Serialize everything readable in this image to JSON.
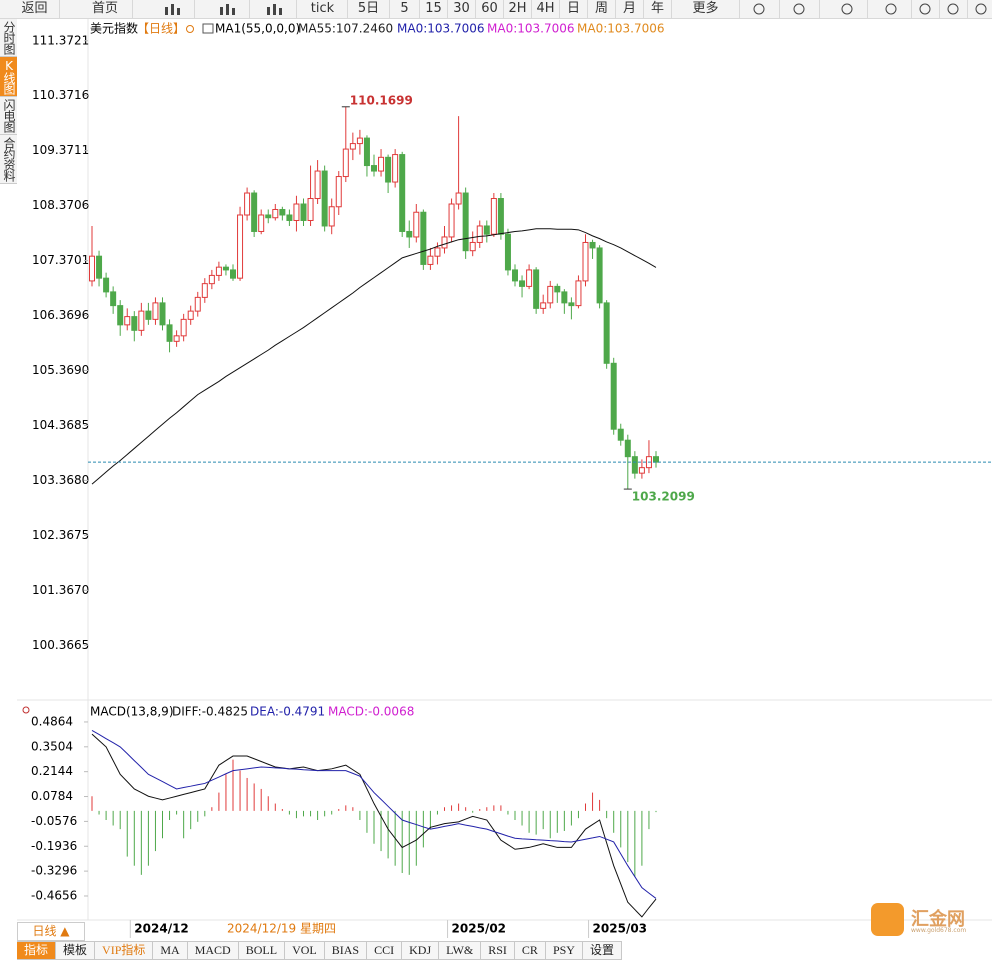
{
  "toolbar": {
    "back": "返回",
    "home": "首页",
    "buttons": [
      "tick",
      "5日",
      "5",
      "15",
      "30",
      "60",
      "2H",
      "4H",
      "日",
      "周",
      "月",
      "年",
      "更多"
    ]
  },
  "sidebar": [
    "分时图",
    "K线图",
    "闪电图",
    "合约资料"
  ],
  "chart_data": [
    {
      "type": "candlestick",
      "title": "美元指数",
      "period": "【日线】",
      "indicator": "MA1(55,0,0,0)",
      "legend": [
        {
          "text": "MA55:107.2460",
          "color": "#222222"
        },
        {
          "text": "MA0:103.7006",
          "color": "#2222aa"
        },
        {
          "text": "MA0:103.7006",
          "color": "#d020d0"
        },
        {
          "text": "MA0:103.7006",
          "color": "#e08a1e"
        }
      ],
      "cursor_label": "2024/12/19 星期四",
      "categories": [
        null,
        null,
        null,
        null,
        null,
        null,
        "2024/12",
        null,
        null,
        null,
        null,
        null,
        null,
        null,
        null,
        null,
        null,
        null,
        null,
        null,
        null,
        null,
        null,
        null,
        null,
        null,
        null,
        null,
        null,
        null,
        null,
        null,
        null,
        null,
        null,
        null,
        null,
        null,
        null,
        null,
        null,
        null,
        null,
        null,
        null,
        null,
        null,
        null,
        null,
        null,
        null,
        "2025/02",
        null,
        null,
        null,
        null,
        null,
        null,
        null,
        null,
        null,
        null,
        null,
        null,
        null,
        null,
        null,
        null,
        null,
        null,
        null,
        "2025/03",
        null,
        null,
        null,
        null,
        null,
        null,
        null,
        null,
        null
      ],
      "open": [
        107.0,
        107.45,
        107.05,
        106.8,
        106.55,
        106.2,
        106.35,
        106.1,
        106.45,
        106.3,
        106.6,
        106.2,
        105.9,
        106.0,
        106.3,
        106.45,
        106.7,
        106.95,
        107.1,
        107.25,
        107.2,
        107.05,
        108.2,
        108.6,
        107.9,
        108.2,
        108.15,
        108.3,
        108.2,
        108.1,
        108.4,
        108.1,
        108.5,
        109.0,
        108.0,
        108.35,
        108.9,
        109.4,
        109.5,
        109.6,
        109.1,
        109.0,
        109.25,
        108.8,
        109.3,
        107.9,
        107.8,
        108.25,
        107.3,
        107.45,
        107.6,
        107.8,
        108.4,
        108.6,
        107.55,
        107.7,
        108.0,
        107.85,
        108.5,
        107.85,
        107.2,
        107.0,
        106.9,
        107.2,
        106.5,
        106.6,
        106.9,
        106.8,
        106.6,
        106.55,
        107.0,
        107.7,
        107.6,
        106.6,
        105.5,
        104.3,
        104.1,
        103.8,
        103.5,
        103.6,
        103.8
      ],
      "high": [
        108.0,
        107.55,
        107.15,
        106.9,
        106.65,
        106.5,
        106.45,
        106.6,
        106.6,
        106.7,
        106.7,
        106.3,
        106.1,
        106.4,
        106.55,
        106.8,
        107.05,
        107.2,
        107.35,
        107.3,
        107.3,
        108.35,
        108.7,
        108.65,
        108.3,
        108.3,
        108.4,
        108.35,
        108.3,
        108.55,
        108.5,
        109.1,
        109.2,
        109.1,
        108.5,
        109.0,
        110.1699,
        109.7,
        109.75,
        109.65,
        109.3,
        109.4,
        109.3,
        109.4,
        109.35,
        108.1,
        108.4,
        108.3,
        107.6,
        107.7,
        108.0,
        108.5,
        110.0,
        108.7,
        107.9,
        108.1,
        108.1,
        108.6,
        108.6,
        107.95,
        107.3,
        107.1,
        107.3,
        107.25,
        106.75,
        107.0,
        106.95,
        106.85,
        106.7,
        107.1,
        107.85,
        107.75,
        107.65,
        106.65,
        105.6,
        104.4,
        104.2,
        103.9,
        103.75,
        104.1,
        103.9
      ],
      "low": [
        106.9,
        106.9,
        106.7,
        106.4,
        106.0,
        106.1,
        105.9,
        106.0,
        106.2,
        106.2,
        106.1,
        105.7,
        105.8,
        105.9,
        106.2,
        106.35,
        106.6,
        106.85,
        107.0,
        107.1,
        107.0,
        107.0,
        108.1,
        107.8,
        107.85,
        108.05,
        108.1,
        108.1,
        108.0,
        107.9,
        108.0,
        108.0,
        108.4,
        107.9,
        107.85,
        108.2,
        108.8,
        109.2,
        109.3,
        108.9,
        108.9,
        108.9,
        108.6,
        108.7,
        107.8,
        107.6,
        107.7,
        107.2,
        107.2,
        107.3,
        107.5,
        107.7,
        108.3,
        107.4,
        107.45,
        107.6,
        107.7,
        107.8,
        107.75,
        107.1,
        106.9,
        106.7,
        106.85,
        106.4,
        106.4,
        106.5,
        106.6,
        106.4,
        106.3,
        106.5,
        106.9,
        107.4,
        106.5,
        105.4,
        104.2,
        104.0,
        103.2099,
        103.4,
        103.4,
        103.5,
        103.6
      ],
      "close": [
        107.45,
        107.05,
        106.8,
        106.55,
        106.2,
        106.35,
        106.1,
        106.45,
        106.3,
        106.6,
        106.2,
        105.9,
        106.0,
        106.3,
        106.45,
        106.7,
        106.95,
        107.1,
        107.25,
        107.2,
        107.05,
        108.2,
        108.6,
        107.9,
        108.2,
        108.15,
        108.3,
        108.2,
        108.1,
        108.4,
        108.1,
        108.5,
        109.0,
        108.0,
        108.35,
        108.9,
        109.4,
        109.5,
        109.6,
        109.1,
        109.0,
        109.25,
        108.8,
        109.3,
        107.9,
        107.8,
        108.25,
        107.3,
        107.45,
        107.6,
        107.8,
        108.4,
        108.6,
        107.55,
        107.7,
        108.0,
        107.85,
        108.5,
        107.85,
        107.2,
        107.0,
        106.9,
        107.2,
        106.5,
        106.6,
        106.9,
        106.8,
        106.6,
        106.55,
        107.0,
        107.7,
        107.6,
        106.6,
        105.5,
        104.3,
        104.1,
        103.8,
        103.5,
        103.6,
        103.8,
        103.7006
      ],
      "ma": {
        "color": "#111111",
        "values": [
          103.3,
          103.41,
          103.52,
          103.63,
          103.73,
          103.84,
          103.95,
          104.06,
          104.17,
          104.28,
          104.39,
          104.5,
          104.6,
          104.71,
          104.82,
          104.93,
          105.01,
          105.09,
          105.17,
          105.26,
          105.34,
          105.42,
          105.5,
          105.58,
          105.66,
          105.74,
          105.83,
          105.91,
          105.99,
          106.07,
          106.15,
          106.24,
          106.33,
          106.42,
          106.51,
          106.6,
          106.69,
          106.78,
          106.88,
          106.97,
          107.06,
          107.15,
          107.24,
          107.33,
          107.42,
          107.46,
          107.5,
          107.54,
          107.58,
          107.63,
          107.67,
          107.71,
          107.75,
          107.77,
          107.79,
          107.81,
          107.82,
          107.84,
          107.86,
          107.88,
          107.9,
          107.91,
          107.93,
          107.95,
          107.95,
          107.95,
          107.94,
          107.94,
          107.94,
          107.93,
          107.88,
          107.82,
          107.77,
          107.71,
          107.66,
          107.6,
          107.53,
          107.46,
          107.39,
          107.32,
          107.246
        ]
      },
      "up_color": "#e03a3a",
      "down_color": "#4ea84a",
      "last_line_color": "#2a8bb0",
      "ylim": [
        99.37,
        111.75
      ],
      "yticks": [
        111.3721,
        110.3716,
        109.3711,
        108.3706,
        107.3701,
        106.3696,
        {
          "value": 105.369,
          "label": "105.3690"
        },
        104.3685,
        {
          "value": 103.368,
          "label": "103.3680"
        },
        102.3675,
        {
          "value": 101.367,
          "label": "101.3670"
        },
        100.3665
      ]
    },
    {
      "type": "macd",
      "title": "MACD(13,8,9)",
      "series": [
        {
          "name": "DIFF:-0.4825",
          "color": "#111111",
          "values": [
            0.42,
            0.385,
            0.35,
            0.275,
            0.2,
            0.16,
            0.12,
            0.1,
            0.08,
            0.07,
            0.06,
            0.07,
            0.08,
            0.09,
            0.1,
            0.11,
            0.12,
            0.185,
            0.25,
            0.275,
            0.3,
            0.3,
            0.3,
            0.285,
            0.27,
            0.255,
            0.24,
            0.235,
            0.23,
            0.235,
            0.24,
            0.23,
            0.22,
            0.225,
            0.23,
            0.24,
            0.25,
            0.225,
            0.2,
            0.12,
            0.04,
            -0.03,
            -0.1,
            -0.15,
            -0.2,
            -0.18,
            -0.16,
            -0.125,
            -0.09,
            -0.08,
            -0.07,
            -0.065,
            -0.06,
            -0.045,
            -0.03,
            -0.04,
            -0.05,
            -0.105,
            -0.16,
            -0.185,
            -0.21,
            -0.205,
            -0.2,
            -0.19,
            -0.18,
            -0.19,
            -0.2,
            -0.2,
            -0.2,
            -0.15,
            -0.1,
            -0.075,
            -0.05,
            -0.175,
            -0.3,
            -0.4,
            -0.5,
            -0.54,
            -0.58,
            -0.53,
            -0.4825
          ]
        },
        {
          "name": "DEA:-0.4791",
          "color": "#2222aa",
          "values": [
            0.44,
            0.418,
            0.395,
            0.373,
            0.35,
            0.313,
            0.275,
            0.238,
            0.2,
            0.18,
            0.16,
            0.14,
            0.12,
            0.128,
            0.135,
            0.143,
            0.15,
            0.168,
            0.185,
            0.203,
            0.22,
            0.225,
            0.23,
            0.235,
            0.24,
            0.238,
            0.235,
            0.233,
            0.23,
            0.228,
            0.225,
            0.223,
            0.22,
            0.22,
            0.22,
            0.22,
            0.22,
            0.205,
            0.19,
            0.145,
            0.1,
            0.063,
            0.025,
            -0.013,
            -0.05,
            -0.063,
            -0.075,
            -0.088,
            -0.1,
            -0.093,
            -0.085,
            -0.078,
            -0.07,
            -0.078,
            -0.085,
            -0.093,
            -0.1,
            -0.113,
            -0.125,
            -0.138,
            -0.15,
            -0.153,
            -0.155,
            -0.158,
            -0.16,
            -0.163,
            -0.165,
            -0.168,
            -0.17,
            -0.163,
            -0.155,
            -0.148,
            -0.14,
            -0.155,
            -0.17,
            -0.235,
            -0.3,
            -0.36,
            -0.42,
            -0.45,
            -0.4791
          ]
        },
        {
          "name": "MACD:-0.0068",
          "color": "#d020d0",
          "values": [
            0.08,
            -0.02,
            -0.05,
            -0.08,
            -0.1,
            -0.25,
            -0.3,
            -0.35,
            -0.3,
            -0.22,
            -0.15,
            -0.05,
            -0.02,
            -0.15,
            -0.1,
            -0.06,
            -0.03,
            0.02,
            0.1,
            0.2,
            0.28,
            0.22,
            0.18,
            0.15,
            0.12,
            0.08,
            0.04,
            0.01,
            -0.02,
            -0.04,
            -0.03,
            -0.03,
            -0.05,
            -0.03,
            -0.02,
            0.01,
            0.03,
            0.02,
            -0.05,
            -0.12,
            -0.18,
            -0.22,
            -0.26,
            -0.3,
            -0.34,
            -0.35,
            -0.3,
            -0.2,
            -0.1,
            -0.02,
            0.02,
            0.03,
            0.04,
            0.02,
            -0.01,
            0.01,
            0.02,
            0.03,
            0.03,
            -0.02,
            -0.05,
            -0.08,
            -0.12,
            -0.13,
            -0.1,
            -0.15,
            -0.12,
            -0.11,
            -0.08,
            -0.04,
            0.04,
            0.1,
            0.06,
            -0.04,
            -0.12,
            -0.2,
            -0.28,
            -0.36,
            -0.3,
            -0.1,
            -0.0068
          ]
        }
      ],
      "bar_up_color": "#e03a3a",
      "bar_down_color": "#4ea84a",
      "ylim": [
        -0.597,
        0.508
      ],
      "yticks": [
        0.4864,
        0.3504,
        0.2144,
        0.0784,
        -0.0576,
        -0.1936,
        -0.3296,
        -0.4656
      ]
    }
  ],
  "period_button": "日线 ▲",
  "tabs": [
    "指标",
    "模板",
    "VIP指标",
    "MA",
    "MACD",
    "BOLL",
    "VOL",
    "BIAS",
    "CCI",
    "KDJ",
    "LW&",
    "RSI",
    "CR",
    "PSY",
    "设置"
  ],
  "logo": {
    "name": "汇金网",
    "url": "www.gold678.com"
  }
}
